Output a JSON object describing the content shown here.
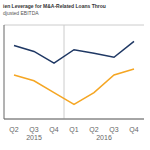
{
  "chart_data": {
    "type": "line",
    "title": "ien Leverage for M&A-Related Loans Throu",
    "subtitle": "djusted EBITDA",
    "categories": [
      "Q2",
      "Q3",
      "Q4",
      "Q1",
      "Q2",
      "Q3",
      "Q4"
    ],
    "annotations": [
      "2015",
      "2016"
    ],
    "series": [
      {
        "color": "#1f3864",
        "values": [
          4.85,
          4.75,
          4.55,
          4.78,
          4.72,
          4.65,
          4.92
        ]
      },
      {
        "color": "#f5a623",
        "values": [
          4.35,
          4.25,
          4.05,
          3.85,
          4.05,
          4.35,
          4.45
        ]
      }
    ],
    "ylim": [
      3.6,
      5.2
    ],
    "yticks": [
      4.0,
      4.5,
      5.0
    ],
    "grid": true,
    "tick_labels": "x"
  }
}
